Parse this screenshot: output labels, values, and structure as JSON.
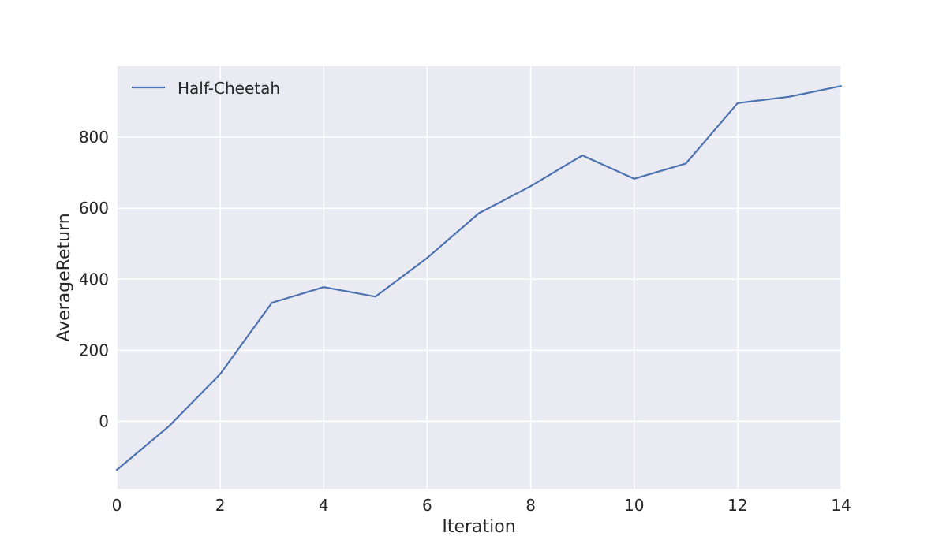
{
  "chart_data": {
    "type": "line",
    "xlabel": "Iteration",
    "ylabel": "AverageReturn",
    "xlim": [
      0,
      14
    ],
    "ylim": [
      -190,
      1000
    ],
    "x_ticks": [
      0,
      2,
      4,
      6,
      8,
      10,
      12,
      14
    ],
    "y_ticks": [
      0,
      200,
      400,
      600,
      800
    ],
    "grid": true,
    "legend_position": "top-left",
    "x": [
      0,
      1,
      2,
      3,
      4,
      5,
      6,
      7,
      8,
      9,
      10,
      11,
      12,
      13,
      14
    ],
    "series": [
      {
        "name": "Half-Cheetah",
        "values": [
          -137,
          -15,
          133,
          334,
          378,
          351,
          460,
          586,
          662,
          749,
          683,
          726,
          896,
          914,
          944
        ],
        "color": "#4c72b0"
      }
    ],
    "colors": {
      "plot_background": "#eaeaf2",
      "grid": "#ffffff",
      "text": "#262626"
    }
  }
}
